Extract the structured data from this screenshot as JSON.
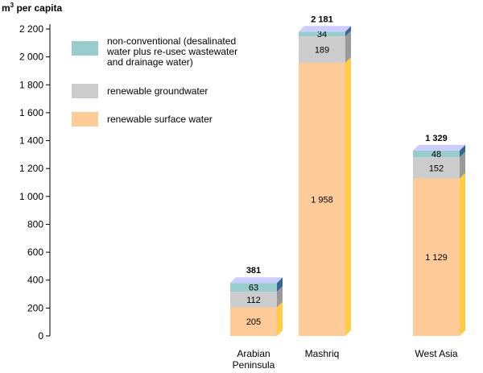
{
  "chart_data": {
    "type": "bar",
    "stacked": true,
    "ylabel_prefix": "m",
    "ylabel_sup": "3",
    "ylabel_suffix": " per capita",
    "ylim": [
      0,
      2200
    ],
    "yticks": [
      0,
      200,
      400,
      600,
      800,
      1000,
      1200,
      1400,
      1600,
      1800,
      2000,
      2200
    ],
    "ytick_labels": [
      "0",
      "200",
      "400",
      "600",
      "800",
      "1 000",
      "1 200",
      "1 400",
      "1 600",
      "1 800",
      "2 000",
      "2 200"
    ],
    "grid": false,
    "legend_position": "top-left",
    "categories": [
      {
        "lines": [
          "Arabian",
          "Peninsula"
        ]
      },
      {
        "lines": [
          "Mashriq"
        ]
      },
      {
        "lines": [
          "West Asia"
        ]
      }
    ],
    "totals": [
      381,
      2181,
      1329
    ],
    "total_labels": [
      "381",
      "2 181",
      "1 329"
    ],
    "series": [
      {
        "name": "renewable surface water",
        "values": [
          205,
          1958,
          1129
        ],
        "labels": [
          "205",
          "1 958",
          "1 129"
        ],
        "color": "#FFCC99",
        "side_color": "#FFCC44",
        "top_color": "#FFE0B8"
      },
      {
        "name": "renewable groundwater",
        "values": [
          112,
          189,
          152
        ],
        "labels": [
          "112",
          "189",
          "152"
        ],
        "color": "#CCCCCC",
        "side_color": "#999999",
        "top_color": "#DDDDDD"
      },
      {
        "name": "non-conventional (desalinated water plus re-used wastewater and drainage water)",
        "legend_lines": [
          "non-conventional (desalinated",
          "water plus re-usec wastewater",
          "and drainage water)"
        ],
        "values": [
          63,
          34,
          48
        ],
        "labels": [
          "63",
          "34",
          "48"
        ],
        "color": "#99CCCC",
        "side_color": "#336699",
        "top_color": "#CCCCFF"
      }
    ],
    "legend_order": [
      2,
      1,
      0
    ]
  }
}
